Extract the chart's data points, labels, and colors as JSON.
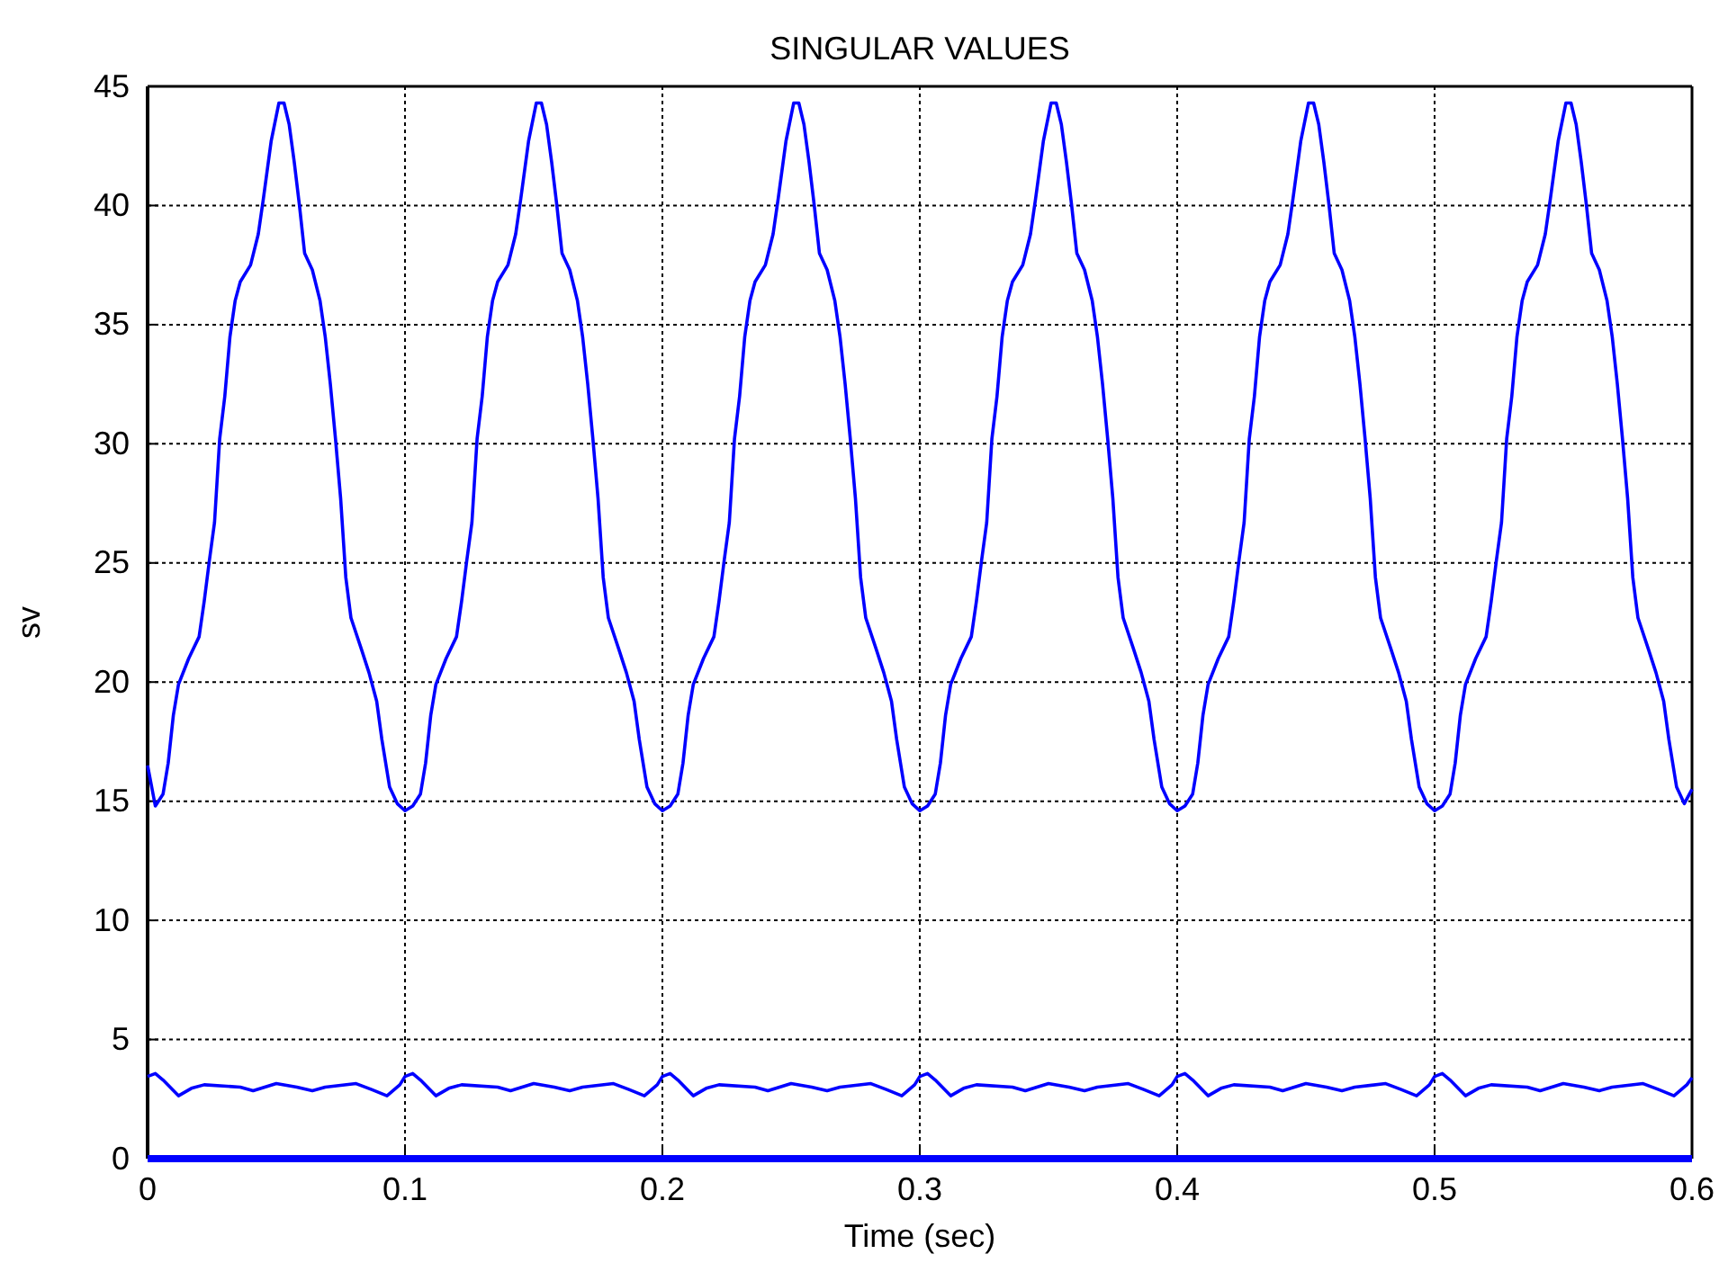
{
  "chart_data": {
    "type": "line",
    "title": "SINGULAR VALUES",
    "xlabel": "Time (sec)",
    "ylabel": "sv",
    "xlim": [
      0,
      0.6
    ],
    "xticks": [
      0,
      0.1,
      0.2,
      0.3,
      0.4,
      0.5,
      0.6
    ],
    "ylim": [
      0,
      45
    ],
    "yticks": [
      0,
      5,
      10,
      15,
      20,
      25,
      30,
      35,
      40,
      45
    ],
    "grid": true,
    "marker": "none",
    "line_style": "solid",
    "series": [
      {
        "color": "#0000ff",
        "x": [
          0,
          0.003,
          0.006,
          0.008,
          0.01,
          0.012,
          0.016,
          0.02,
          0.022,
          0.024,
          0.026,
          0.028,
          0.03,
          0.032,
          0.034,
          0.036,
          0.04,
          0.043,
          0.045,
          0.048,
          0.051,
          0.053,
          0.055,
          0.057,
          0.059,
          0.061,
          0.064,
          0.067,
          0.069,
          0.071,
          0.073,
          0.075,
          0.077,
          0.079,
          0.083,
          0.086,
          0.089,
          0.091,
          0.094,
          0.097,
          0.1,
          0.103,
          0.106,
          0.108,
          0.11,
          0.112,
          0.116,
          0.12,
          0.122,
          0.124,
          0.126,
          0.128,
          0.13,
          0.132,
          0.134,
          0.136,
          0.14,
          0.143,
          0.145,
          0.148,
          0.151,
          0.153,
          0.155,
          0.157,
          0.159,
          0.161,
          0.164,
          0.167,
          0.169,
          0.171,
          0.173,
          0.175,
          0.177,
          0.179,
          0.183,
          0.186,
          0.189,
          0.191,
          0.194,
          0.197,
          0.2,
          0.203,
          0.206,
          0.208,
          0.21,
          0.212,
          0.216,
          0.22,
          0.222,
          0.224,
          0.226,
          0.228,
          0.23,
          0.232,
          0.234,
          0.236,
          0.24,
          0.243,
          0.245,
          0.248,
          0.251,
          0.253,
          0.255,
          0.257,
          0.259,
          0.261,
          0.264,
          0.267,
          0.269,
          0.271,
          0.273,
          0.275,
          0.277,
          0.279,
          0.283,
          0.286,
          0.289,
          0.291,
          0.294,
          0.297,
          0.3,
          0.303,
          0.306,
          0.308,
          0.31,
          0.312,
          0.316,
          0.32,
          0.322,
          0.324,
          0.326,
          0.328,
          0.33,
          0.332,
          0.334,
          0.336,
          0.34,
          0.343,
          0.345,
          0.348,
          0.351,
          0.353,
          0.355,
          0.357,
          0.359,
          0.361,
          0.364,
          0.367,
          0.369,
          0.371,
          0.373,
          0.375,
          0.377,
          0.379,
          0.383,
          0.386,
          0.389,
          0.391,
          0.394,
          0.397,
          0.4,
          0.403,
          0.406,
          0.408,
          0.41,
          0.412,
          0.416,
          0.42,
          0.422,
          0.424,
          0.426,
          0.428,
          0.43,
          0.432,
          0.434,
          0.436,
          0.44,
          0.443,
          0.445,
          0.448,
          0.451,
          0.453,
          0.455,
          0.457,
          0.459,
          0.461,
          0.464,
          0.467,
          0.469,
          0.471,
          0.473,
          0.475,
          0.477,
          0.479,
          0.483,
          0.486,
          0.489,
          0.491,
          0.494,
          0.497,
          0.5,
          0.503,
          0.506,
          0.508,
          0.51,
          0.512,
          0.516,
          0.52,
          0.522,
          0.524,
          0.526,
          0.528,
          0.53,
          0.532,
          0.534,
          0.536,
          0.54,
          0.543,
          0.545,
          0.548,
          0.551,
          0.553,
          0.555,
          0.557,
          0.559,
          0.561,
          0.564,
          0.567,
          0.569,
          0.571,
          0.573,
          0.575,
          0.577,
          0.579,
          0.583,
          0.586,
          0.589,
          0.591,
          0.594,
          0.597,
          0.6
        ],
        "values": [
          16.5,
          14.8,
          15.3,
          16.6,
          18.6,
          19.9,
          21,
          21.9,
          23.4,
          25.1,
          26.7,
          30.2,
          32,
          34.5,
          36,
          36.8,
          37.5,
          38.8,
          40.3,
          42.7,
          44.3,
          44.3,
          43.4,
          41.8,
          40,
          38,
          37.3,
          36,
          34.5,
          32.5,
          30.2,
          27.7,
          24.4,
          22.7,
          21.4,
          20.4,
          19.2,
          17.6,
          15.6,
          14.9,
          14.6,
          14.8,
          15.3,
          16.6,
          18.6,
          19.9,
          21,
          21.9,
          23.4,
          25.1,
          26.7,
          30.2,
          32,
          34.5,
          36,
          36.8,
          37.5,
          38.8,
          40.3,
          42.7,
          44.3,
          44.3,
          43.4,
          41.8,
          40,
          38,
          37.3,
          36,
          34.5,
          32.5,
          30.2,
          27.7,
          24.4,
          22.7,
          21.4,
          20.4,
          19.2,
          17.6,
          15.6,
          14.9,
          14.6,
          14.8,
          15.3,
          16.6,
          18.6,
          19.9,
          21,
          21.9,
          23.4,
          25.1,
          26.7,
          30.2,
          32,
          34.5,
          36,
          36.8,
          37.5,
          38.8,
          40.3,
          42.7,
          44.3,
          44.3,
          43.4,
          41.8,
          40,
          38,
          37.3,
          36,
          34.5,
          32.5,
          30.2,
          27.7,
          24.4,
          22.7,
          21.4,
          20.4,
          19.2,
          17.6,
          15.6,
          14.9,
          14.6,
          14.8,
          15.3,
          16.6,
          18.6,
          19.9,
          21,
          21.9,
          23.4,
          25.1,
          26.7,
          30.2,
          32,
          34.5,
          36,
          36.8,
          37.5,
          38.8,
          40.3,
          42.7,
          44.3,
          44.3,
          43.4,
          41.8,
          40,
          38,
          37.3,
          36,
          34.5,
          32.5,
          30.2,
          27.7,
          24.4,
          22.7,
          21.4,
          20.4,
          19.2,
          17.6,
          15.6,
          14.9,
          14.6,
          14.8,
          15.3,
          16.6,
          18.6,
          19.9,
          21,
          21.9,
          23.4,
          25.1,
          26.7,
          30.2,
          32,
          34.5,
          36,
          36.8,
          37.5,
          38.8,
          40.3,
          42.7,
          44.3,
          44.3,
          43.4,
          41.8,
          40,
          38,
          37.3,
          36,
          34.5,
          32.5,
          30.2,
          27.7,
          24.4,
          22.7,
          21.4,
          20.4,
          19.2,
          17.6,
          15.6,
          14.9,
          14.6,
          14.8,
          15.3,
          16.6,
          18.6,
          19.9,
          21,
          21.9,
          23.4,
          25.1,
          26.7,
          30.2,
          32,
          34.5,
          36,
          36.8,
          37.5,
          38.8,
          40.3,
          42.7,
          44.3,
          44.3,
          43.4,
          41.8,
          40,
          38,
          37.3,
          36,
          34.5,
          32.5,
          30.2,
          27.7,
          24.4,
          22.7,
          21.4,
          20.4,
          19.2,
          17.6,
          15.6,
          14.9,
          15.5
        ]
      },
      {
        "color": "#0000ff",
        "x": [
          0,
          0.003,
          0.006,
          0.012,
          0.017,
          0.022,
          0.036,
          0.041,
          0.05,
          0.058,
          0.064,
          0.069,
          0.081,
          0.087,
          0.093,
          0.098,
          0.1,
          0.103,
          0.106,
          0.112,
          0.117,
          0.122,
          0.136,
          0.141,
          0.15,
          0.158,
          0.164,
          0.169,
          0.181,
          0.187,
          0.193,
          0.198,
          0.2,
          0.203,
          0.206,
          0.212,
          0.217,
          0.222,
          0.236,
          0.241,
          0.25,
          0.258,
          0.264,
          0.269,
          0.281,
          0.287,
          0.293,
          0.298,
          0.3,
          0.303,
          0.306,
          0.312,
          0.317,
          0.322,
          0.336,
          0.341,
          0.35,
          0.358,
          0.364,
          0.369,
          0.381,
          0.387,
          0.393,
          0.398,
          0.4,
          0.403,
          0.406,
          0.412,
          0.417,
          0.422,
          0.436,
          0.441,
          0.45,
          0.458,
          0.464,
          0.469,
          0.481,
          0.487,
          0.493,
          0.498,
          0.5,
          0.503,
          0.506,
          0.512,
          0.517,
          0.522,
          0.536,
          0.541,
          0.55,
          0.558,
          0.564,
          0.569,
          0.581,
          0.587,
          0.593,
          0.598,
          0.6
        ],
        "values": [
          3.45,
          3.57,
          3.3,
          2.64,
          2.95,
          3.1,
          3,
          2.85,
          3.15,
          3,
          2.85,
          3,
          3.15,
          2.9,
          2.64,
          3.1,
          3.45,
          3.57,
          3.3,
          2.64,
          2.95,
          3.1,
          3,
          2.85,
          3.15,
          3,
          2.85,
          3,
          3.15,
          2.9,
          2.64,
          3.1,
          3.45,
          3.57,
          3.3,
          2.64,
          2.95,
          3.1,
          3,
          2.85,
          3.15,
          3,
          2.85,
          3,
          3.15,
          2.9,
          2.64,
          3.1,
          3.45,
          3.57,
          3.3,
          2.64,
          2.95,
          3.1,
          3,
          2.85,
          3.15,
          3,
          2.85,
          3,
          3.15,
          2.9,
          2.64,
          3.1,
          3.45,
          3.57,
          3.3,
          2.64,
          2.95,
          3.1,
          3,
          2.85,
          3.15,
          3,
          2.85,
          3,
          3.15,
          2.9,
          2.64,
          3.1,
          3.45,
          3.57,
          3.3,
          2.64,
          2.95,
          3.1,
          3,
          2.85,
          3.15,
          3,
          2.85,
          3,
          3.15,
          2.9,
          2.64,
          3.1,
          3.4
        ]
      },
      {
        "color": "#0000ff",
        "x": [
          0,
          0.6
        ],
        "values": [
          0,
          0
        ]
      }
    ]
  }
}
